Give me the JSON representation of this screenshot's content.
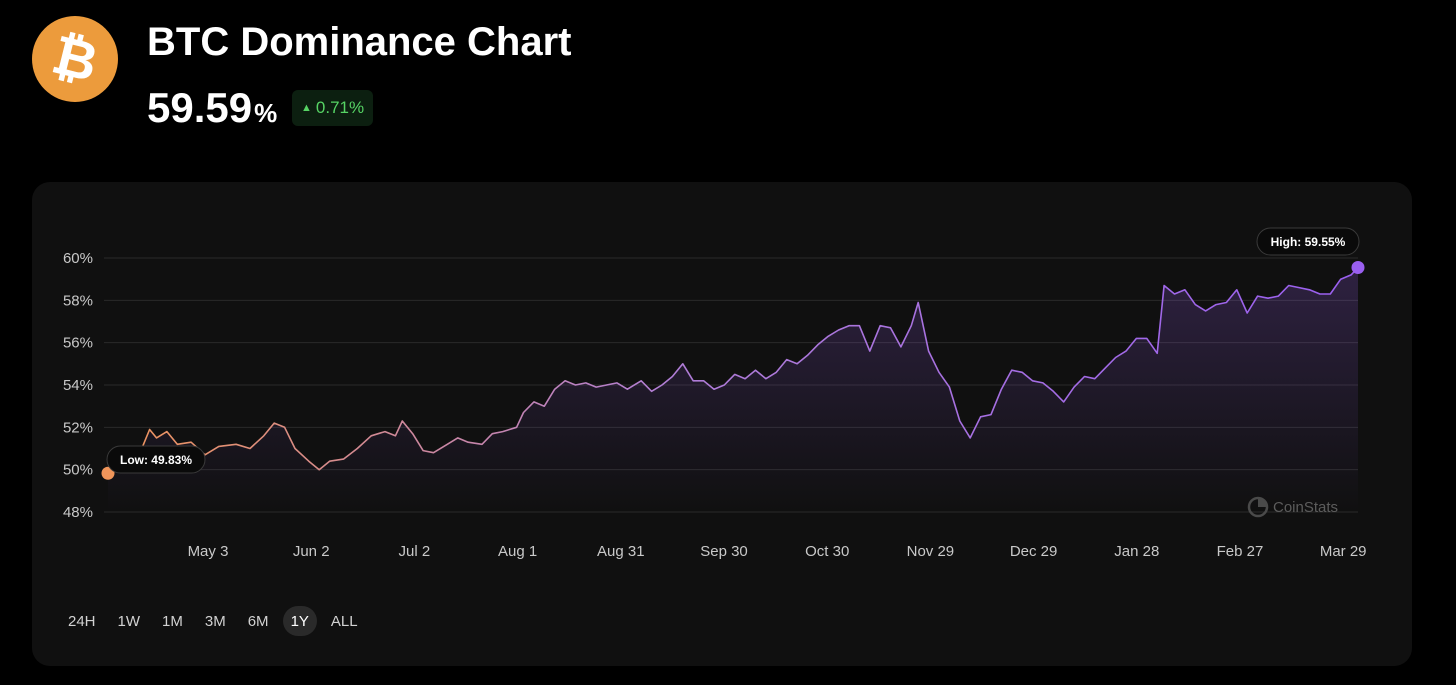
{
  "header": {
    "logo_glyph": "₿",
    "title": "BTC Dominance Chart",
    "value": "59.59",
    "value_unit": "%",
    "change": "0.71%",
    "change_arrow": "▲",
    "change_color": "#56d364"
  },
  "ranges": [
    {
      "label": "24H",
      "active": false
    },
    {
      "label": "1W",
      "active": false
    },
    {
      "label": "1M",
      "active": false
    },
    {
      "label": "3M",
      "active": false
    },
    {
      "label": "6M",
      "active": false
    },
    {
      "label": "1Y",
      "active": true
    },
    {
      "label": "ALL",
      "active": false
    }
  ],
  "chart_data": {
    "type": "area",
    "title": "",
    "xlabel": "",
    "ylabel": "",
    "ylim": [
      48,
      60
    ],
    "yticks": [
      {
        "value": 60,
        "label": "60%"
      },
      {
        "value": 58,
        "label": "58%"
      },
      {
        "value": 56,
        "label": "56%"
      },
      {
        "value": 54,
        "label": "54%"
      },
      {
        "value": 52,
        "label": "52%"
      },
      {
        "value": 50,
        "label": "50%"
      },
      {
        "value": 48,
        "label": "48%"
      }
    ],
    "xticks": [
      "May 3",
      "Jun 2",
      "Jul 2",
      "Aug 1",
      "Aug 31",
      "Sep 30",
      "Oct 30",
      "Nov 29",
      "Dec 29",
      "Jan 28",
      "Feb 27",
      "Mar 29"
    ],
    "x_start": "2024-04-03",
    "x_end": "2025-03-30",
    "gradient_colors": [
      "#f0955a",
      "#b07dd6",
      "#9a5ff0"
    ],
    "grid": true,
    "low_label": "Low: 49.83%",
    "high_label": "High: 59.55%",
    "low": {
      "date": "2024-04-03",
      "value": 49.83
    },
    "high": {
      "date": "2025-03-30",
      "value": 59.55
    },
    "watermark": "CoinStats",
    "series": [
      {
        "points": [
          [
            "2024-04-03",
            49.83
          ],
          [
            "2024-04-08",
            50.3
          ],
          [
            "2024-04-12",
            50.7
          ],
          [
            "2024-04-15",
            51.9
          ],
          [
            "2024-04-17",
            51.5
          ],
          [
            "2024-04-20",
            51.8
          ],
          [
            "2024-04-23",
            51.2
          ],
          [
            "2024-04-27",
            51.3
          ],
          [
            "2024-05-01",
            50.7
          ],
          [
            "2024-05-05",
            51.1
          ],
          [
            "2024-05-10",
            51.2
          ],
          [
            "2024-05-14",
            51.0
          ],
          [
            "2024-05-18",
            51.6
          ],
          [
            "2024-05-21",
            52.2
          ],
          [
            "2024-05-24",
            52.0
          ],
          [
            "2024-05-27",
            51.0
          ],
          [
            "2024-05-31",
            50.4
          ],
          [
            "2024-06-03",
            50.0
          ],
          [
            "2024-06-06",
            50.4
          ],
          [
            "2024-06-10",
            50.5
          ],
          [
            "2024-06-14",
            51.0
          ],
          [
            "2024-06-18",
            51.6
          ],
          [
            "2024-06-22",
            51.8
          ],
          [
            "2024-06-25",
            51.6
          ],
          [
            "2024-06-27",
            52.3
          ],
          [
            "2024-06-30",
            51.7
          ],
          [
            "2024-07-03",
            50.9
          ],
          [
            "2024-07-06",
            50.8
          ],
          [
            "2024-07-10",
            51.2
          ],
          [
            "2024-07-13",
            51.5
          ],
          [
            "2024-07-16",
            51.3
          ],
          [
            "2024-07-20",
            51.2
          ],
          [
            "2024-07-23",
            51.7
          ],
          [
            "2024-07-26",
            51.8
          ],
          [
            "2024-07-30",
            52.0
          ],
          [
            "2024-08-01",
            52.7
          ],
          [
            "2024-08-04",
            53.2
          ],
          [
            "2024-08-07",
            53.0
          ],
          [
            "2024-08-10",
            53.8
          ],
          [
            "2024-08-13",
            54.2
          ],
          [
            "2024-08-16",
            54.0
          ],
          [
            "2024-08-19",
            54.1
          ],
          [
            "2024-08-22",
            53.9
          ],
          [
            "2024-08-25",
            54.0
          ],
          [
            "2024-08-28",
            54.1
          ],
          [
            "2024-08-31",
            53.8
          ],
          [
            "2024-09-04",
            54.2
          ],
          [
            "2024-09-07",
            53.7
          ],
          [
            "2024-09-10",
            54.0
          ],
          [
            "2024-09-13",
            54.4
          ],
          [
            "2024-09-16",
            55.0
          ],
          [
            "2024-09-19",
            54.2
          ],
          [
            "2024-09-22",
            54.2
          ],
          [
            "2024-09-25",
            53.8
          ],
          [
            "2024-09-28",
            54.0
          ],
          [
            "2024-10-01",
            54.5
          ],
          [
            "2024-10-04",
            54.3
          ],
          [
            "2024-10-07",
            54.7
          ],
          [
            "2024-10-10",
            54.3
          ],
          [
            "2024-10-13",
            54.6
          ],
          [
            "2024-10-16",
            55.2
          ],
          [
            "2024-10-19",
            55.0
          ],
          [
            "2024-10-22",
            55.4
          ],
          [
            "2024-10-25",
            55.9
          ],
          [
            "2024-10-28",
            56.3
          ],
          [
            "2024-10-31",
            56.6
          ],
          [
            "2024-11-03",
            56.8
          ],
          [
            "2024-11-06",
            56.8
          ],
          [
            "2024-11-09",
            55.6
          ],
          [
            "2024-11-12",
            56.8
          ],
          [
            "2024-11-15",
            56.7
          ],
          [
            "2024-11-18",
            55.8
          ],
          [
            "2024-11-21",
            56.8
          ],
          [
            "2024-11-23",
            57.9
          ],
          [
            "2024-11-26",
            55.6
          ],
          [
            "2024-11-29",
            54.6
          ],
          [
            "2024-12-02",
            53.9
          ],
          [
            "2024-12-05",
            52.3
          ],
          [
            "2024-12-08",
            51.5
          ],
          [
            "2024-12-11",
            52.5
          ],
          [
            "2024-12-14",
            52.6
          ],
          [
            "2024-12-17",
            53.8
          ],
          [
            "2024-12-20",
            54.7
          ],
          [
            "2024-12-23",
            54.6
          ],
          [
            "2024-12-26",
            54.2
          ],
          [
            "2024-12-29",
            54.1
          ],
          [
            "2025-01-01",
            53.7
          ],
          [
            "2025-01-04",
            53.2
          ],
          [
            "2025-01-07",
            53.9
          ],
          [
            "2025-01-10",
            54.4
          ],
          [
            "2025-01-13",
            54.3
          ],
          [
            "2025-01-16",
            54.8
          ],
          [
            "2025-01-19",
            55.3
          ],
          [
            "2025-01-22",
            55.6
          ],
          [
            "2025-01-25",
            56.2
          ],
          [
            "2025-01-28",
            56.2
          ],
          [
            "2025-01-31",
            55.5
          ],
          [
            "2025-02-02",
            58.7
          ],
          [
            "2025-02-05",
            58.3
          ],
          [
            "2025-02-08",
            58.5
          ],
          [
            "2025-02-11",
            57.8
          ],
          [
            "2025-02-14",
            57.5
          ],
          [
            "2025-02-17",
            57.8
          ],
          [
            "2025-02-20",
            57.9
          ],
          [
            "2025-02-23",
            58.5
          ],
          [
            "2025-02-26",
            57.4
          ],
          [
            "2025-03-01",
            58.2
          ],
          [
            "2025-03-04",
            58.1
          ],
          [
            "2025-03-07",
            58.2
          ],
          [
            "2025-03-10",
            58.7
          ],
          [
            "2025-03-13",
            58.6
          ],
          [
            "2025-03-16",
            58.5
          ],
          [
            "2025-03-19",
            58.3
          ],
          [
            "2025-03-22",
            58.3
          ],
          [
            "2025-03-25",
            59.0
          ],
          [
            "2025-03-28",
            59.2
          ],
          [
            "2025-03-30",
            59.55
          ]
        ]
      }
    ]
  }
}
